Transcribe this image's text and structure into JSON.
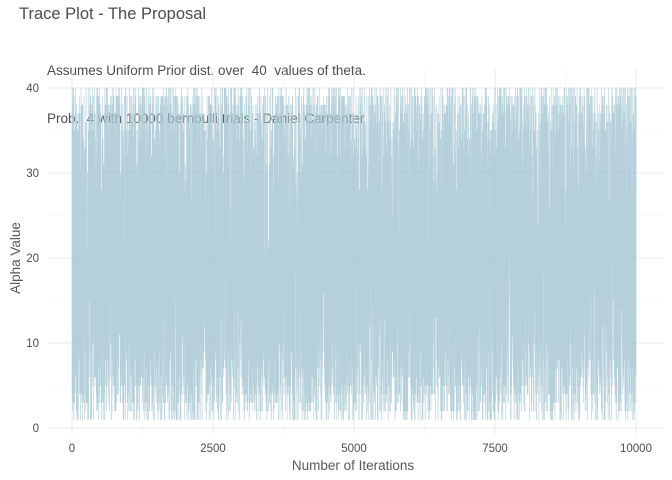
{
  "chart_data": {
    "type": "line",
    "title": "Trace Plot - The Proposal",
    "subtitle_lines": [
      "Assumes Uniform Prior dist. over  40  values of theta.",
      "Prob.  4 with 10000 bernoulli trials - Daniel Carpenter"
    ],
    "xlabel": "Number of Iterations",
    "ylabel": "Alpha Value",
    "xlim": [
      1,
      10000
    ],
    "ylim": [
      1,
      40
    ],
    "x_ticks": [
      0,
      2500,
      5000,
      7500,
      10000
    ],
    "x_tick_labels": [
      "0",
      "2500",
      "5000",
      "7500",
      "10000"
    ],
    "y_ticks": [
      0,
      10,
      20,
      30,
      40
    ],
    "y_tick_labels": [
      "0",
      "10",
      "20",
      "30",
      "40"
    ],
    "grid": true,
    "legend": "none",
    "series_color": "#a8c8d4",
    "series": [
      {
        "n_points": 10000,
        "description_values": "Proposal trace oscillating uniformly between 1 and 40 across all iterations",
        "sample": [
          12,
          37,
          4,
          28,
          19,
          33,
          2,
          40,
          15,
          24,
          7,
          31,
          22,
          9,
          38,
          17,
          26,
          3,
          35,
          11
        ]
      }
    ]
  }
}
